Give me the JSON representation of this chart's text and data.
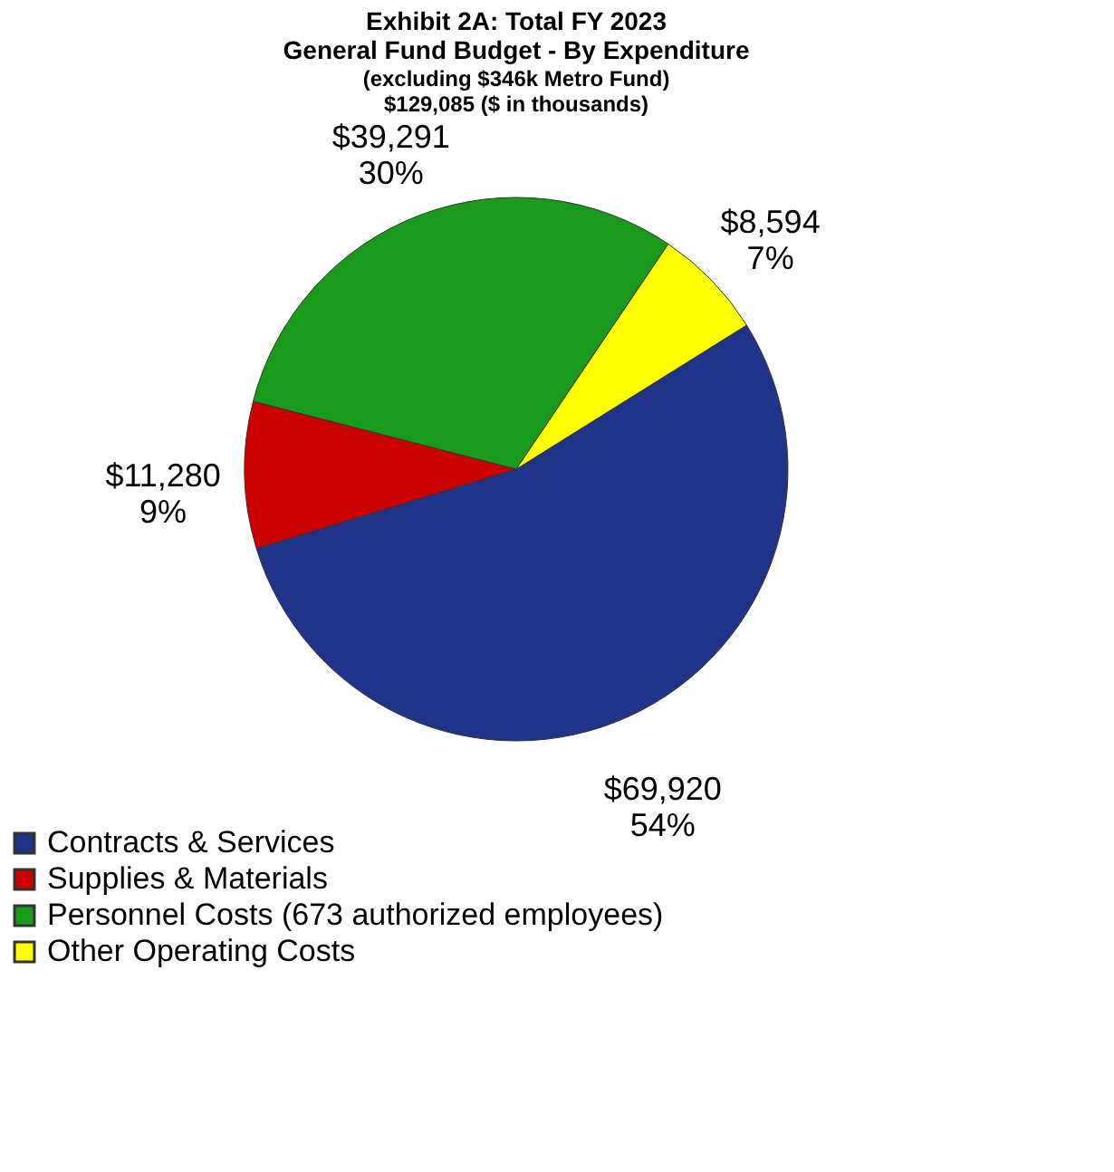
{
  "chart_data": {
    "type": "pie",
    "title": "Exhibit 2A: Total FY 2023\nGeneral Fund Budget - By Expenditure",
    "subtitle": "(excluding $346k Metro Fund)\n$129,085 ($ in thousands)",
    "categories": [
      "Contracts & Services",
      "Supplies & Materials",
      "Personnel Costs (673 authorized employees)",
      "Other Operating Costs"
    ],
    "values": [
      69920,
      11280,
      39291,
      8594
    ],
    "value_labels": [
      "$69,920\n54%",
      "$11,280\n9%",
      "$39,291\n30%",
      "$8,594\n7%"
    ],
    "colors": [
      "#1f3488",
      "#cc0000",
      "#1a9a1a",
      "#ffff00"
    ],
    "legend": "bottom"
  }
}
